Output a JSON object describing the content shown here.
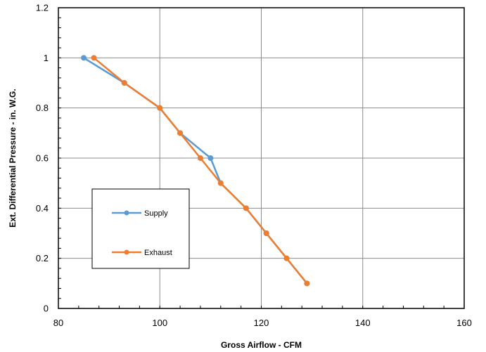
{
  "chart_data": {
    "type": "line",
    "title": "",
    "xlabel": "Gross Airflow - CFM",
    "ylabel": "Ext. Differential Pressure - in. W.G.",
    "xlim": [
      80,
      160
    ],
    "ylim": [
      0,
      1.2
    ],
    "x_ticks": [
      80,
      100,
      120,
      140,
      160
    ],
    "y_ticks": [
      0,
      0.2,
      0.4,
      0.6,
      0.8,
      1,
      1.2
    ],
    "x_tick_labels": [
      "80",
      "100",
      "120",
      "140",
      "160"
    ],
    "y_tick_labels": [
      "0",
      "0.2",
      "0.4",
      "0.6",
      "0.8",
      "1",
      "1.2"
    ],
    "grid": true,
    "legend_position": "lower-left inside plot",
    "series": [
      {
        "name": "Supply",
        "color": "#5B9BD5",
        "points": [
          {
            "x": 85,
            "y": 1.0
          },
          {
            "x": 93,
            "y": 0.9
          },
          {
            "x": 100,
            "y": 0.8
          },
          {
            "x": 104,
            "y": 0.7
          },
          {
            "x": 110,
            "y": 0.6
          },
          {
            "x": 112,
            "y": 0.5
          },
          {
            "x": 117,
            "y": 0.4
          },
          {
            "x": 121,
            "y": 0.3
          },
          {
            "x": 125,
            "y": 0.2
          },
          {
            "x": 129,
            "y": 0.1
          }
        ]
      },
      {
        "name": "Exhaust",
        "color": "#ED7D31",
        "points": [
          {
            "x": 87,
            "y": 1.0
          },
          {
            "x": 93,
            "y": 0.9
          },
          {
            "x": 100,
            "y": 0.8
          },
          {
            "x": 104,
            "y": 0.7
          },
          {
            "x": 108,
            "y": 0.6
          },
          {
            "x": 112,
            "y": 0.5
          },
          {
            "x": 117,
            "y": 0.4
          },
          {
            "x": 121,
            "y": 0.3
          },
          {
            "x": 125,
            "y": 0.2
          },
          {
            "x": 129,
            "y": 0.1
          }
        ]
      }
    ]
  }
}
